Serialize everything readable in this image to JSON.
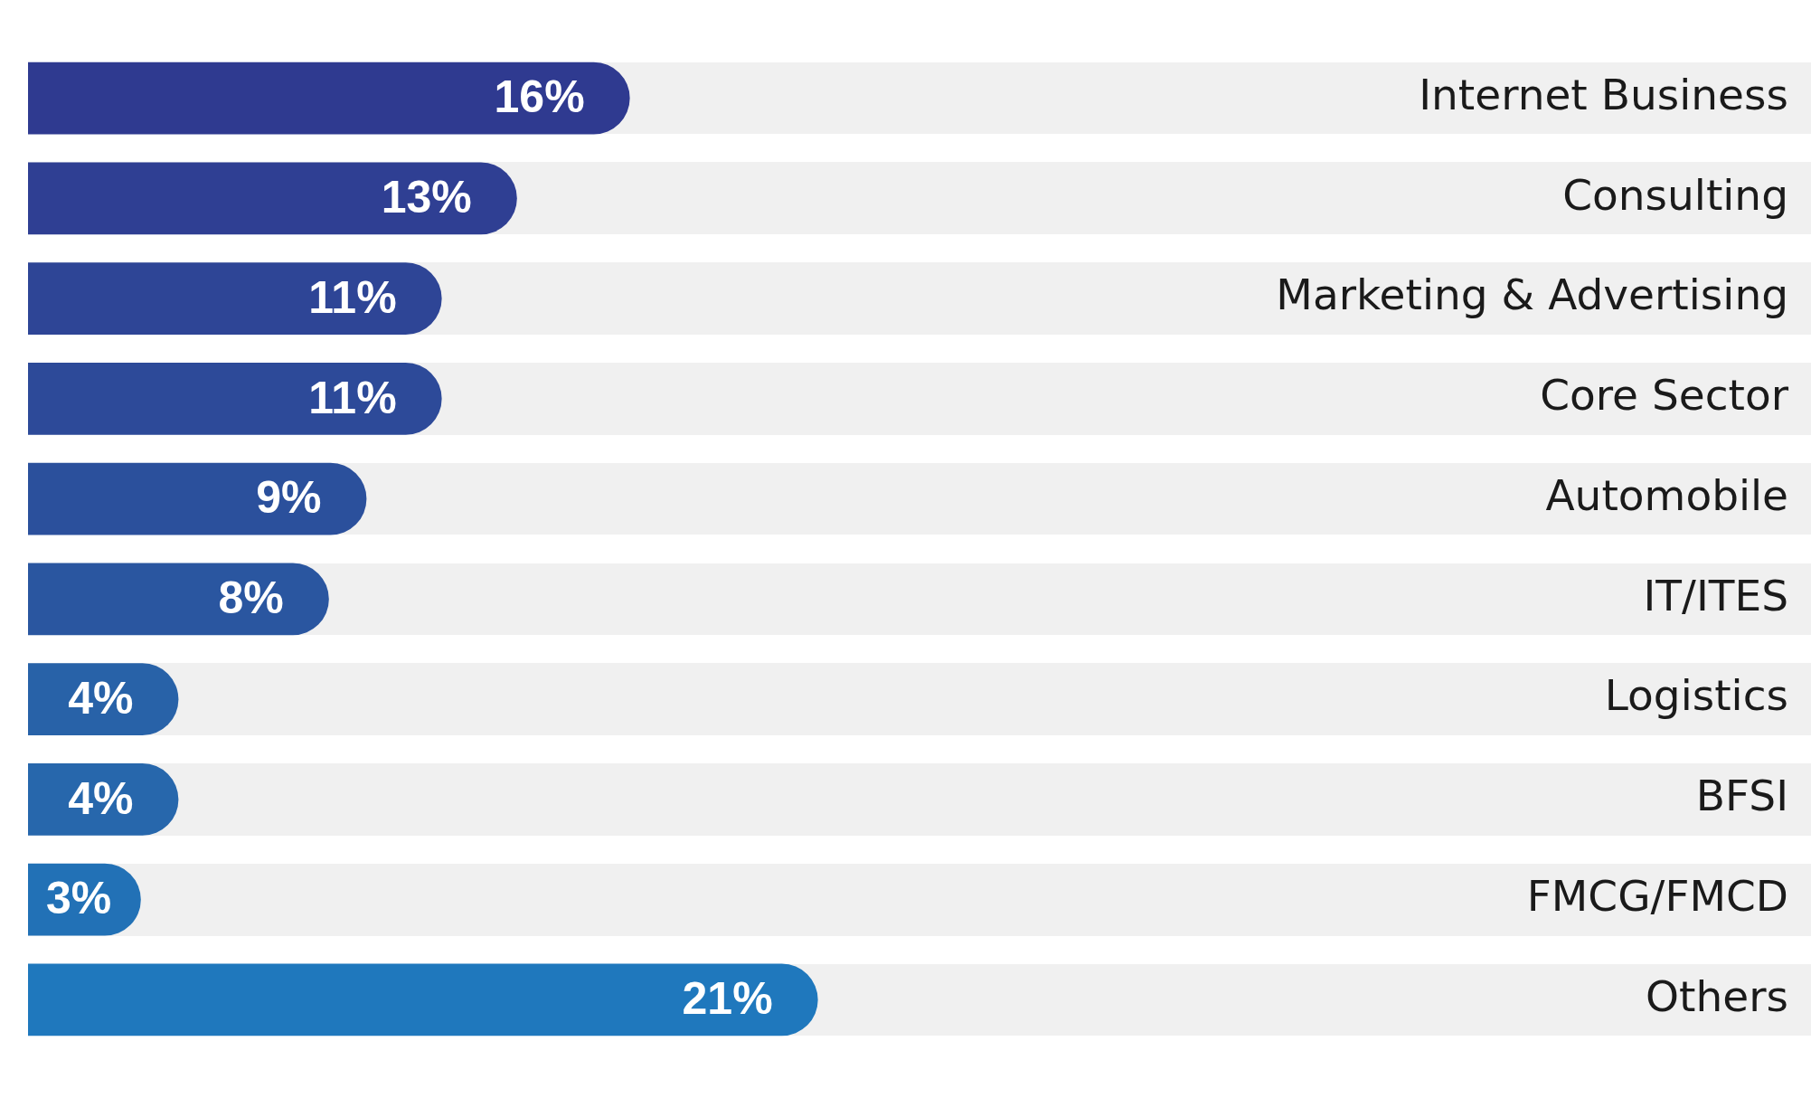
{
  "chart_data": {
    "type": "bar",
    "orientation": "horizontal",
    "categories": [
      "Internet Business",
      "Consulting",
      "Marketing & Advertising",
      "Core Sector",
      "Automobile",
      "IT/ITES",
      "Logistics",
      "BFSI",
      "FMCG/FMCD",
      "Others"
    ],
    "values": [
      16,
      13,
      11,
      11,
      9,
      8,
      4,
      4,
      3,
      21
    ],
    "value_labels": [
      "16%",
      "13%",
      "11%",
      "11%",
      "9%",
      "8%",
      "4%",
      "4%",
      "3%",
      "21%"
    ],
    "colors": [
      "#2f3a90",
      "#2f3f93",
      "#2e4596",
      "#2d4a99",
      "#2b509c",
      "#2a56a0",
      "#2862a8",
      "#2767ac",
      "#2271b6",
      "#1f78bd"
    ],
    "tick_labels": "y",
    "grid": false,
    "legend": false
  }
}
